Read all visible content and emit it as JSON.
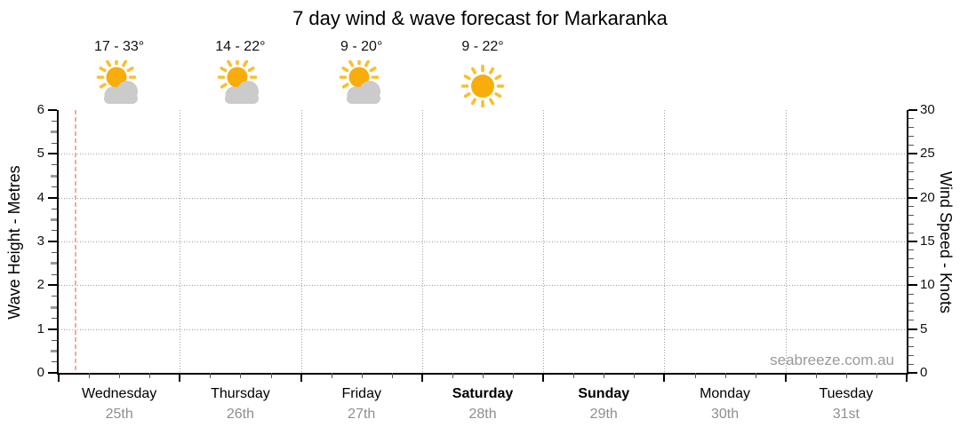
{
  "watermark": "seabreeze.com.au",
  "colors": {
    "sun": "#F8AD0B",
    "sun_ray": "#FBBF2E",
    "cloud": "#CBCBCB",
    "grid": "#A0A0A0",
    "now_line": "#F5A8A8",
    "axis_line": "#000000",
    "minor_tick": "#555555",
    "half_tick": "#999999",
    "date_text": "#8F8F8F",
    "watermark_text": "#9A9A9A"
  },
  "chart_data": {
    "type": "line",
    "title": "7 day wind & wave forecast for Markaranka",
    "series": [],
    "legend": "none",
    "left_axis": {
      "label": "Wave Height - Metres",
      "min": 0,
      "max": 6,
      "ticks": [
        0,
        1,
        2,
        3,
        4,
        5,
        6
      ],
      "minor_step": 0.25
    },
    "right_axis": {
      "label": "Wind Speed - Knots",
      "min": 0,
      "max": 30,
      "ticks": [
        0,
        5,
        10,
        15,
        20,
        25,
        30
      ],
      "minor_step": 1
    },
    "x_axis": {
      "days": 7,
      "minor_ticks_per_day": 4,
      "categories": [
        {
          "name": "Wednesday",
          "date": "25th",
          "weekend": false
        },
        {
          "name": "Thursday",
          "date": "26th",
          "weekend": false
        },
        {
          "name": "Friday",
          "date": "27th",
          "weekend": false
        },
        {
          "name": "Saturday",
          "date": "28th",
          "weekend": true
        },
        {
          "name": "Sunday",
          "date": "29th",
          "weekend": true
        },
        {
          "name": "Monday",
          "date": "30th",
          "weekend": false
        },
        {
          "name": "Tuesday",
          "date": "31st",
          "weekend": false
        }
      ]
    },
    "grid": {
      "horizontal_values": [
        1,
        2,
        3,
        4,
        5
      ],
      "vertical": "day-boundaries"
    },
    "annotations": {
      "daily_forecast": [
        {
          "day": "Wednesday",
          "temp": "17 - 33°",
          "icon": "sun-cloud"
        },
        {
          "day": "Thursday",
          "temp": "14 - 22°",
          "icon": "sun-cloud"
        },
        {
          "day": "Friday",
          "temp": "9 - 20°",
          "icon": "sun-cloud"
        },
        {
          "day": "Saturday",
          "temp": "9 - 22°",
          "icon": "sun"
        }
      ],
      "now_marker": {
        "style": "dashed-vertical-line",
        "day_index": 0,
        "day_fraction": 0.13
      }
    }
  }
}
